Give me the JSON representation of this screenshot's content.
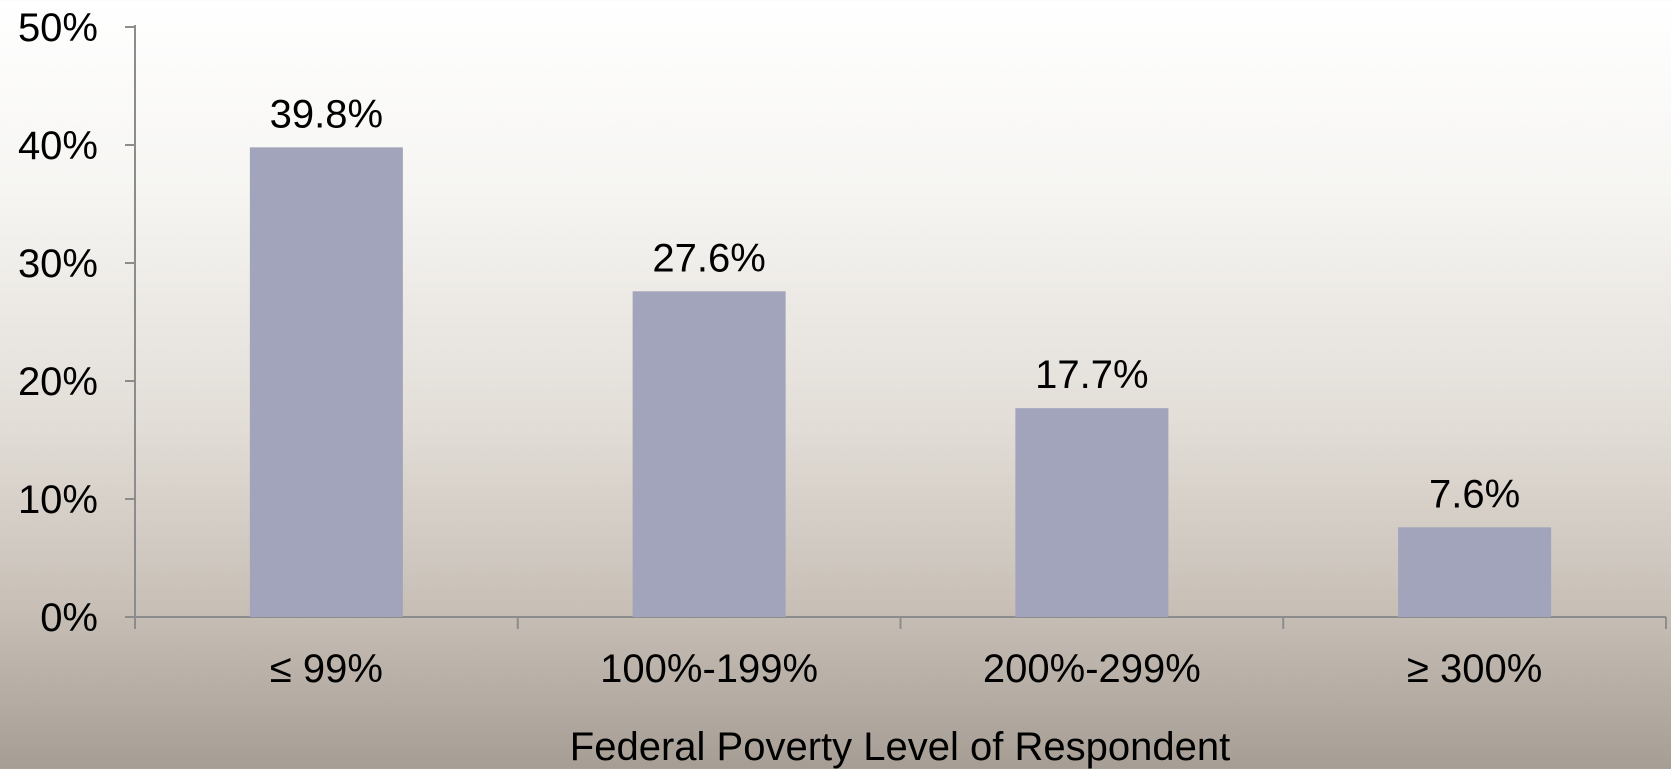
{
  "chart_data": {
    "type": "bar",
    "title": "",
    "xlabel": "Federal Poverty Level of Respondent",
    "ylabel": "",
    "categories": [
      "≤ 99%",
      "100%-199%",
      "200%-299%",
      "≥ 300%"
    ],
    "values": [
      39.8,
      27.6,
      17.7,
      7.6
    ],
    "data_labels": [
      "39.8%",
      "27.6%",
      "17.7%",
      "7.6%"
    ],
    "ylim": [
      0,
      50
    ],
    "y_ticks": [
      0,
      10,
      20,
      30,
      40,
      50
    ],
    "y_tick_labels": [
      "0%",
      "10%",
      "20%",
      "30%",
      "40%",
      "50%"
    ],
    "grid": false,
    "legend": "none",
    "bar_color": "#a1a4bb",
    "axis_color": "#8c8c8c"
  }
}
